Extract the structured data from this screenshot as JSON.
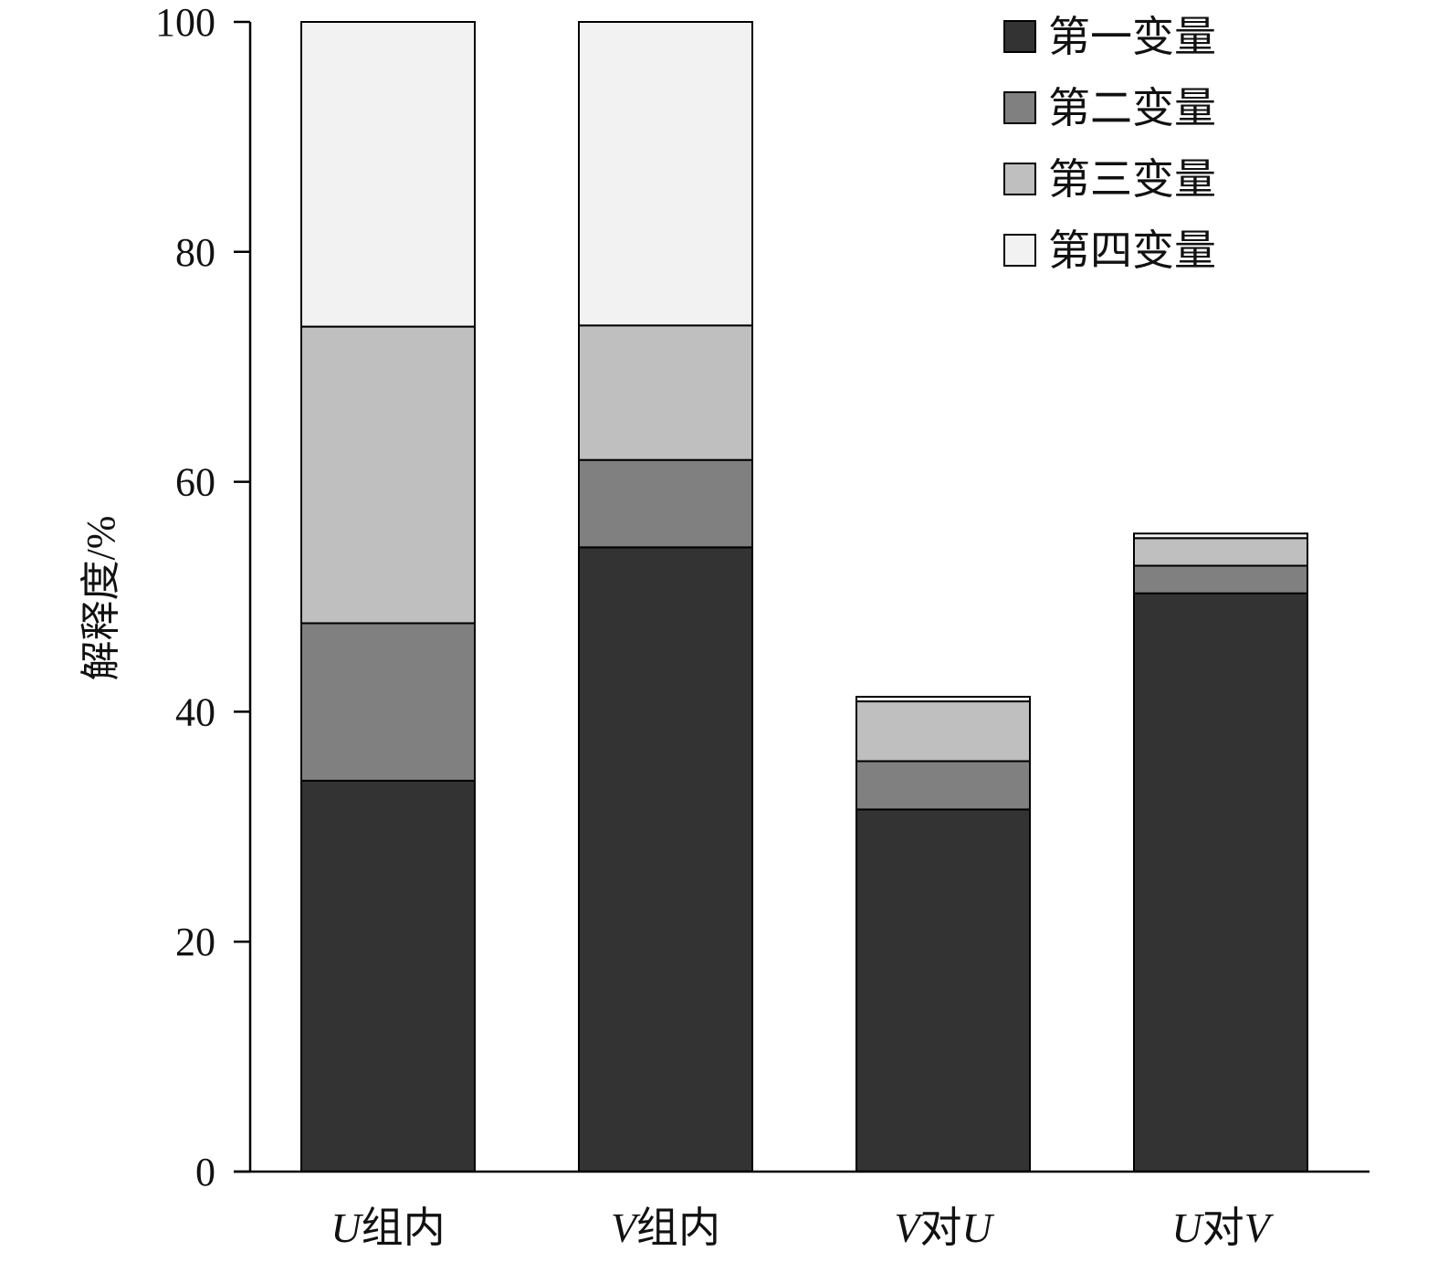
{
  "chart_data": {
    "type": "bar",
    "stacked": true,
    "categories": [
      {
        "italic": "U",
        "text": "组内"
      },
      {
        "italic": "V",
        "text": "组内"
      },
      {
        "italic": "V",
        "text": "对",
        "italic2": "U"
      },
      {
        "italic": "U",
        "text": "对",
        "italic2": "V"
      }
    ],
    "series": [
      {
        "name": "第一变量",
        "color": "#333333",
        "values": [
          34.0,
          54.3,
          31.5,
          50.3
        ]
      },
      {
        "name": "第二变量",
        "color": "#808080",
        "values": [
          13.7,
          7.6,
          4.2,
          2.4
        ]
      },
      {
        "name": "第三变量",
        "color": "#bfbfbf",
        "values": [
          25.8,
          11.7,
          5.2,
          2.4
        ]
      },
      {
        "name": "第四变量",
        "color": "#f2f2f2",
        "values": [
          26.5,
          26.4,
          0.4,
          0.4
        ]
      }
    ],
    "ylabel": "解释度/%",
    "ylim": [
      0,
      100
    ],
    "yticks": [
      0,
      20,
      40,
      60,
      80,
      100
    ],
    "legend_position": "top-right",
    "grid": false
  }
}
